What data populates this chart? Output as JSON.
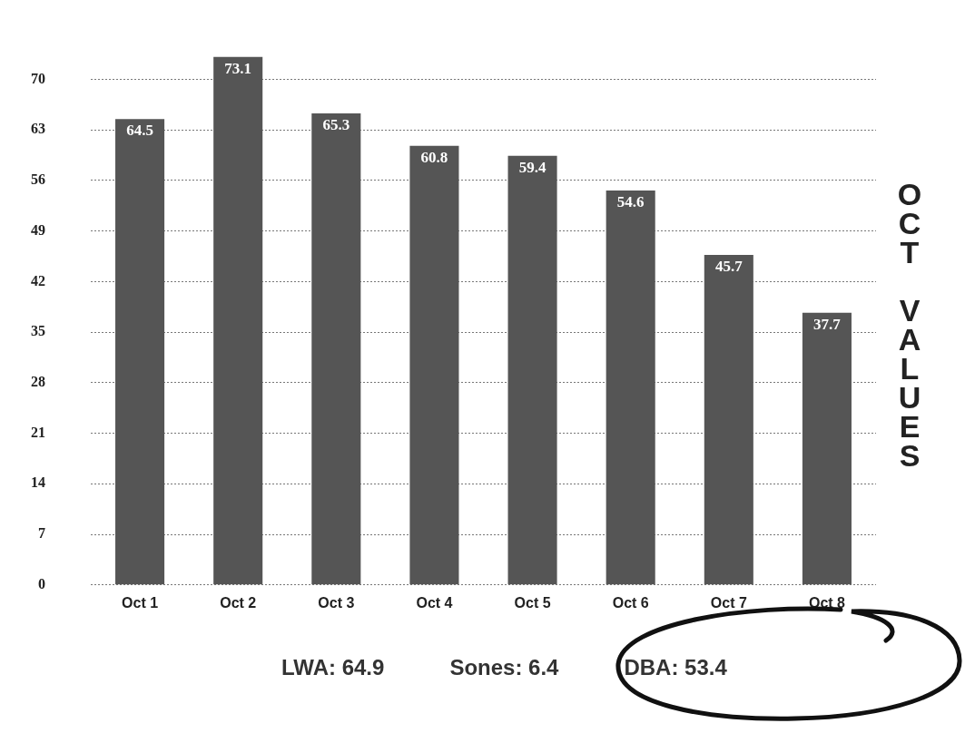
{
  "chart_data": {
    "type": "bar",
    "ylabel": "OCT VALUES",
    "categories": [
      "Oct 1",
      "Oct 2",
      "Oct 3",
      "Oct 4",
      "Oct 5",
      "Oct 6",
      "Oct 7",
      "Oct 8"
    ],
    "values": [
      64.5,
      73.1,
      65.3,
      60.8,
      59.4,
      54.6,
      45.7,
      37.7
    ],
    "color": "#555555",
    "ylim": [
      0,
      73.5
    ],
    "yticks": [
      0,
      7,
      14,
      21,
      28,
      35,
      42,
      49,
      56,
      63,
      70
    ],
    "grid": "y",
    "legend": false,
    "data_labels": true,
    "annotations": [
      "LWA: 64.9",
      "Sones: 6.4",
      "DBA: 53.4"
    ]
  }
}
